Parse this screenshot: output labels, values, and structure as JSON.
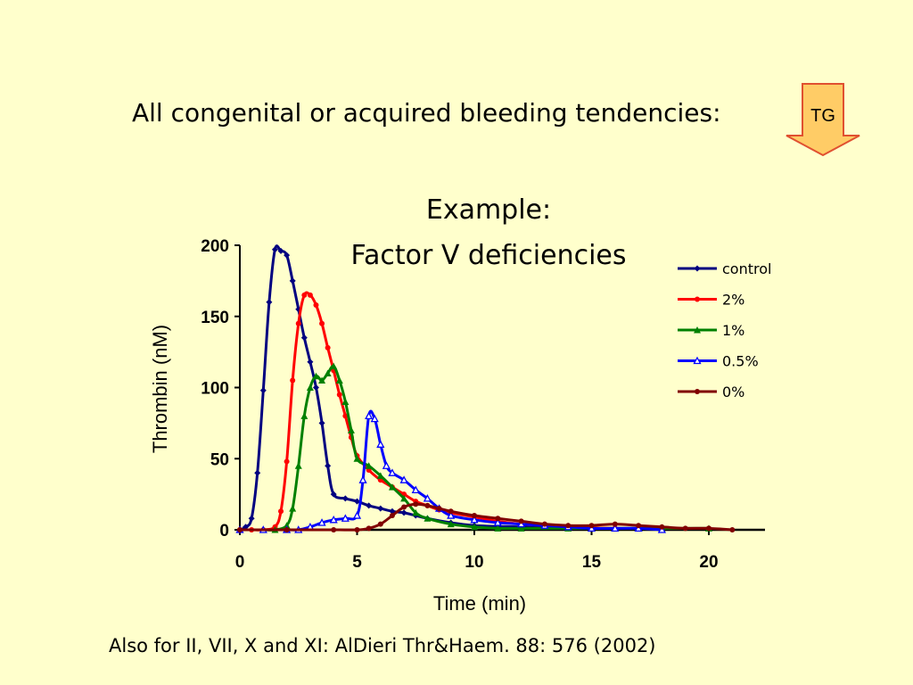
{
  "slide": {
    "heading": "All congenital or acquired bleeding tendencies:",
    "tg_label": "TG",
    "footnote": "Also for II, VII, X and XI: AlDieri Thr&Haem. 88: 576 (2002)",
    "arrow_color": "#ffcc66",
    "arrow_border": "#e05030",
    "background": "#ffffcc"
  },
  "chart_data": {
    "type": "line",
    "title_line1": "Example:",
    "title_line2": "Factor V deficiencies",
    "xlabel": "Time (min)",
    "ylabel": "Thrombin (nM)",
    "xlim": [
      0,
      22
    ],
    "ylim": [
      0,
      200
    ],
    "xticks": [
      0,
      5,
      10,
      15,
      20
    ],
    "yticks": [
      0,
      50,
      100,
      150,
      200
    ],
    "grid": false,
    "legend_position": "top-right",
    "series": [
      {
        "name": "control",
        "color": "#000080",
        "marker": "diamond",
        "x": [
          0,
          0.25,
          0.5,
          0.75,
          1.0,
          1.25,
          1.5,
          1.75,
          2.0,
          2.25,
          2.5,
          2.75,
          3.0,
          3.25,
          3.5,
          3.75,
          4.0,
          4.5,
          5.0,
          5.5,
          6.0,
          6.5,
          7.0,
          7.5,
          8.0,
          9.0,
          10.0,
          12.0,
          14.0,
          16.0,
          18.0,
          20.0
        ],
        "y": [
          0,
          2,
          8,
          40,
          98,
          160,
          197,
          196,
          193,
          175,
          155,
          135,
          118,
          100,
          75,
          45,
          25,
          22,
          20,
          17,
          15,
          13,
          12,
          10,
          8,
          5,
          3,
          2,
          1,
          1,
          1,
          1
        ]
      },
      {
        "name": "2%",
        "color": "#ff0000",
        "marker": "circle",
        "x": [
          0,
          0.5,
          1.0,
          1.5,
          1.75,
          2.0,
          2.25,
          2.5,
          2.75,
          3.0,
          3.25,
          3.5,
          3.75,
          4.0,
          4.25,
          4.5,
          4.75,
          5.0,
          5.5,
          6.0,
          6.5,
          7.0,
          7.5,
          8.0,
          8.5,
          9.0,
          10.0,
          11.0,
          12.0,
          13.0,
          14.0,
          16.0,
          18.0,
          20.0
        ],
        "y": [
          0,
          0,
          0,
          2,
          13,
          48,
          105,
          145,
          165,
          165,
          158,
          145,
          128,
          112,
          95,
          80,
          65,
          52,
          42,
          35,
          30,
          25,
          20,
          17,
          14,
          12,
          9,
          6,
          4,
          3,
          2,
          1,
          1,
          1
        ]
      },
      {
        "name": "1%",
        "color": "#008000",
        "marker": "triangle",
        "x": [
          0,
          1.0,
          1.5,
          2.0,
          2.25,
          2.5,
          2.75,
          3.0,
          3.25,
          3.5,
          3.75,
          4.0,
          4.25,
          4.5,
          4.75,
          5.0,
          5.5,
          6.0,
          6.5,
          7.0,
          7.5,
          8.0,
          9.0,
          10.0,
          11.0,
          12.0,
          14.0,
          16.0,
          18.0,
          20.0
        ],
        "y": [
          0,
          0,
          0,
          3,
          15,
          45,
          80,
          100,
          108,
          105,
          110,
          115,
          105,
          90,
          70,
          50,
          45,
          38,
          30,
          22,
          12,
          8,
          4,
          2,
          1,
          1,
          1,
          1,
          1,
          1
        ]
      },
      {
        "name": "0.5%",
        "color": "#0000ff",
        "marker": "triangle-open",
        "x": [
          0,
          1.0,
          2.0,
          2.5,
          3.0,
          3.5,
          4.0,
          4.5,
          5.0,
          5.25,
          5.5,
          5.75,
          6.0,
          6.25,
          6.5,
          7.0,
          7.5,
          8.0,
          8.5,
          9.0,
          10.0,
          11.0,
          12.0,
          13.0,
          14.0,
          15.0,
          16.0,
          17.0,
          18.0
        ],
        "y": [
          0,
          0,
          0,
          0,
          2,
          5,
          7,
          8,
          10,
          35,
          80,
          78,
          60,
          45,
          40,
          35,
          28,
          22,
          15,
          10,
          7,
          5,
          4,
          3,
          2,
          1,
          1,
          1,
          0
        ]
      },
      {
        "name": "0%",
        "color": "#800000",
        "marker": "circle",
        "x": [
          0,
          2.0,
          4.0,
          5.0,
          5.5,
          6.0,
          6.5,
          7.0,
          7.5,
          8.0,
          8.5,
          9.0,
          10.0,
          11.0,
          12.0,
          13.0,
          14.0,
          15.0,
          16.0,
          17.0,
          18.0,
          19.0,
          20.0,
          21.0
        ],
        "y": [
          0,
          0,
          0,
          0,
          1,
          4,
          10,
          16,
          18,
          17,
          15,
          13,
          10,
          8,
          6,
          4,
          3,
          3,
          4,
          3,
          2,
          1,
          1,
          0
        ]
      }
    ]
  }
}
